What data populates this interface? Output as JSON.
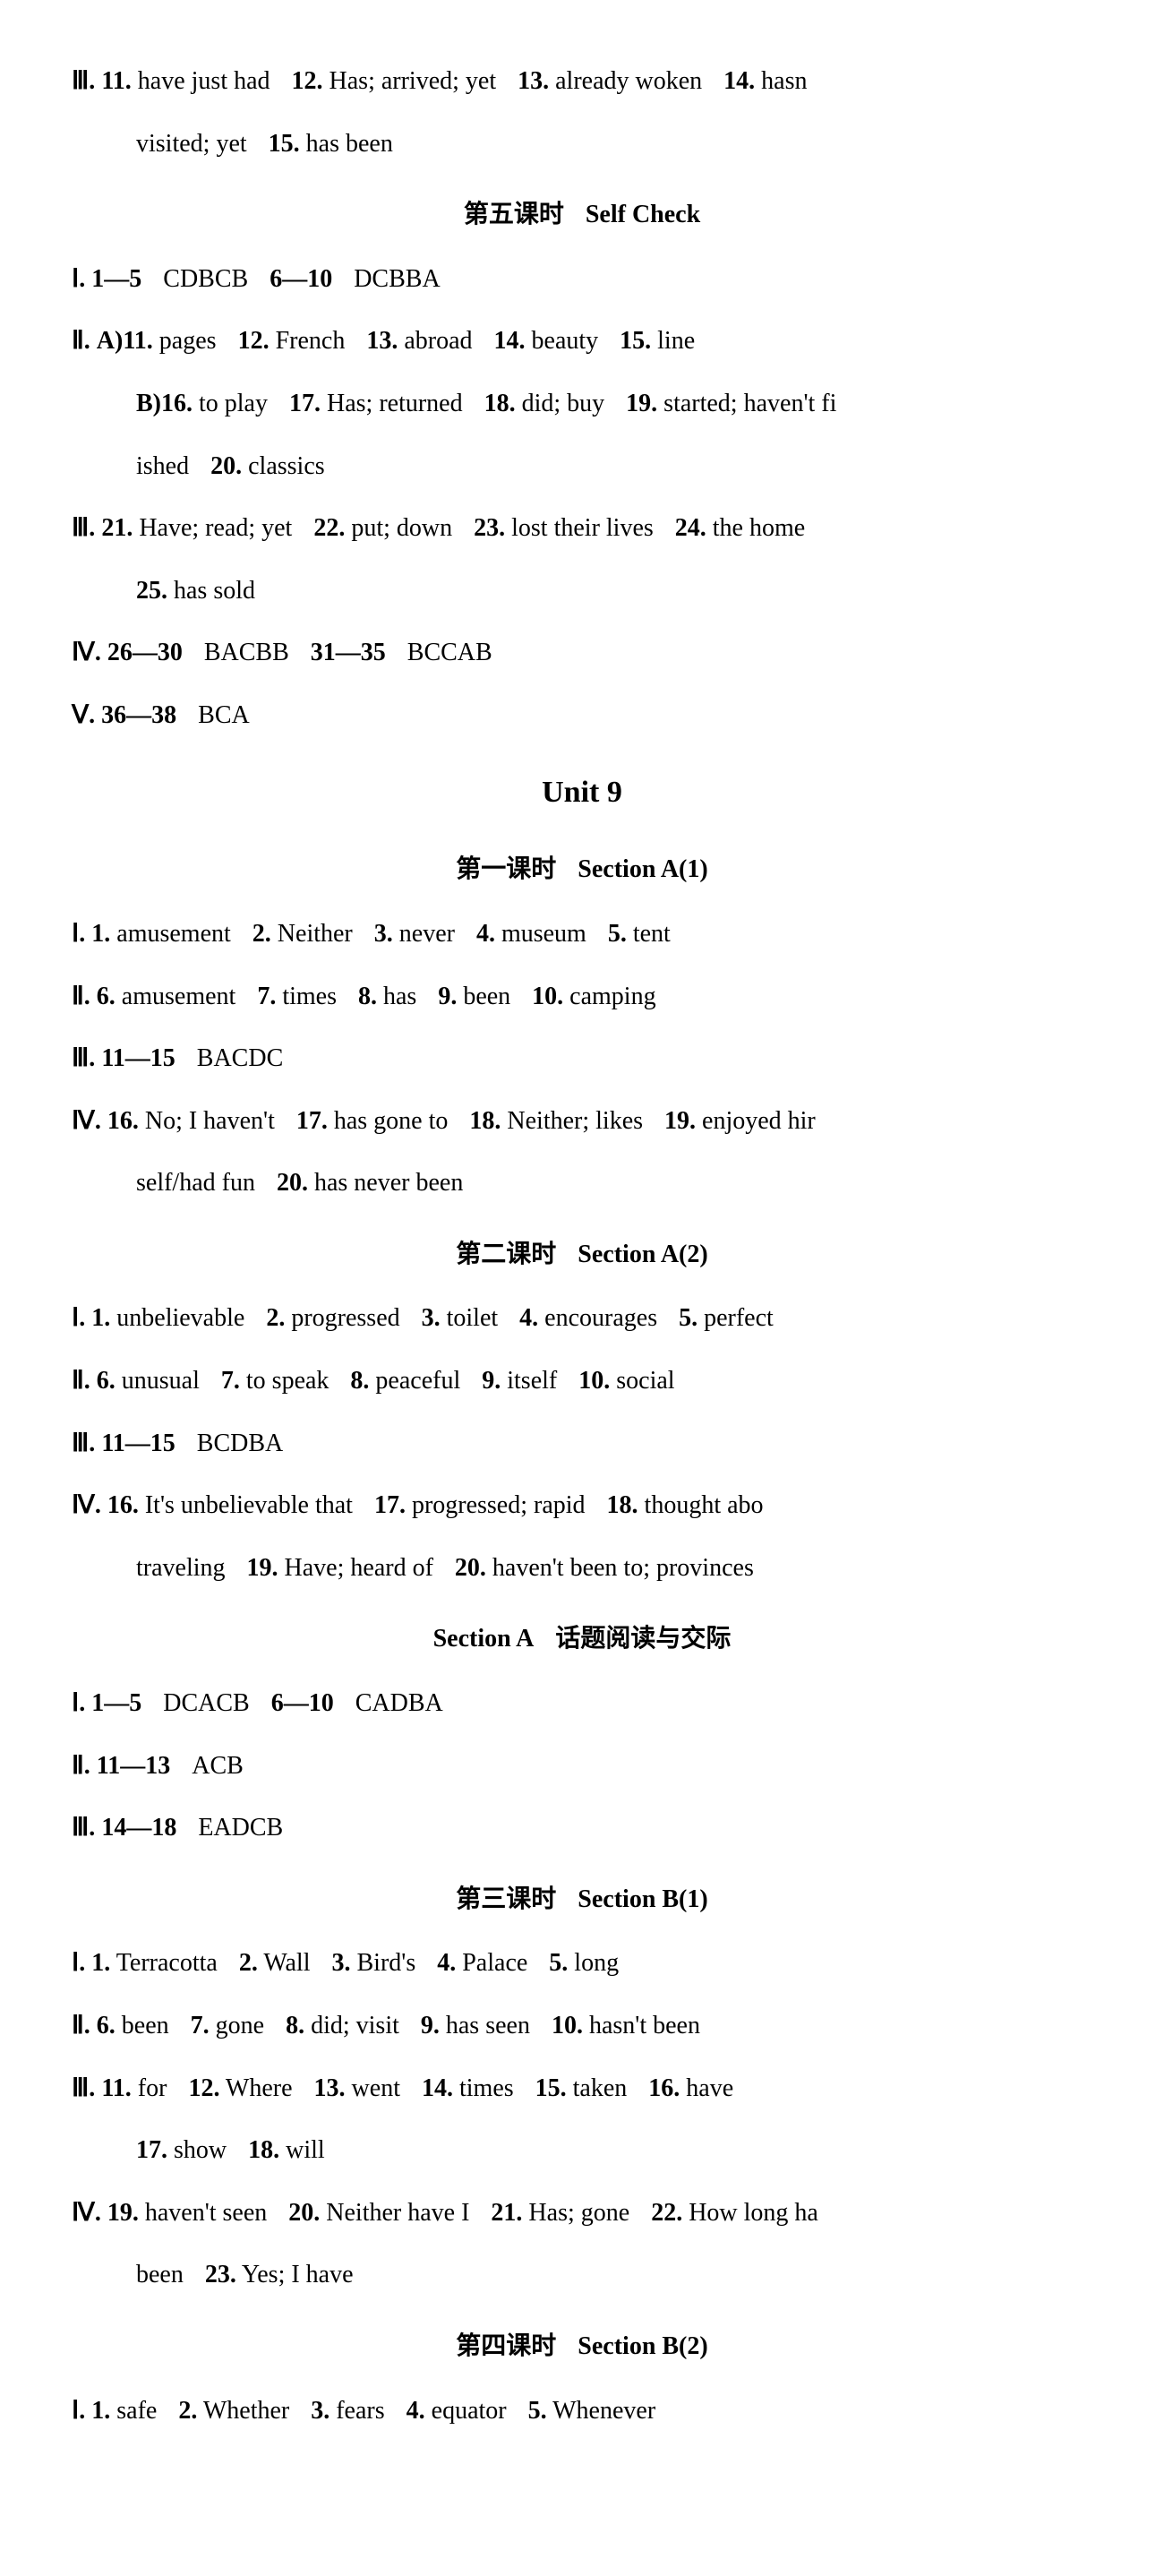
{
  "line1": "Ⅲ. 11. have just had   12. Has; arrived; yet   13. already woken   14. hasn",
  "line2": "visited; yet   15. has been",
  "heading_5": "第五课时   Self Check",
  "sc_1": "Ⅰ. 1—5   CDBCB   6—10   DCBBA",
  "sc_2a": "Ⅱ. A)11. pages   12. French   13. abroad   14. beauty   15. line",
  "sc_2b": "B)16. to play   17. Has; returned   18. did; buy   19. started; haven't fi",
  "sc_2c": "ished   20. classics",
  "sc_3a": "Ⅲ. 21. Have; read; yet   22. put; down   23. lost their lives   24. the home",
  "sc_3b": "25. has sold",
  "sc_4": "Ⅳ. 26—30   BACBB   31—35   BCCAB",
  "sc_5": "Ⅴ. 36—38   BCA",
  "unit9": "Unit 9",
  "h_a1": "第一课时   Section A(1)",
  "a1_1": "Ⅰ. 1. amusement   2. Neither   3. never   4. museum   5. tent",
  "a1_2": "Ⅱ. 6. amusement   7. times   8. has   9. been   10. camping",
  "a1_3": "Ⅲ. 11—15   BACDC",
  "a1_4a": "Ⅳ. 16. No; I haven't   17. has gone to   18. Neither; likes   19. enjoyed hir",
  "a1_4b": "self/had fun   20. has never been",
  "h_a2": "第二课时   Section A(2)",
  "a2_1": "Ⅰ. 1. unbelievable   2. progressed   3. toilet   4. encourages   5. perfect",
  "a2_2": "Ⅱ. 6. unusual   7. to speak   8. peaceful   9. itself   10. social",
  "a2_3": "Ⅲ. 11—15   BCDBA",
  "a2_4a": "Ⅳ. 16. It's unbelievable that    17. progressed; rapid    18. thought abo",
  "a2_4b": "traveling   19. Have; heard of   20. haven't been to; provinces",
  "h_topic": "Section A   话题阅读与交际",
  "tp_1": "Ⅰ. 1—5   DCACB   6—10   CADBA",
  "tp_2": "Ⅱ. 11—13   ACB",
  "tp_3": "Ⅲ. 14—18   EADCB",
  "h_b1": "第三课时   Section B(1)",
  "b1_1": "Ⅰ. 1. Terracotta   2. Wall   3. Bird's   4. Palace   5. long",
  "b1_2": "Ⅱ. 6. been   7. gone   8. did; visit   9. has seen   10. hasn't been",
  "b1_3a": "Ⅲ. 11. for   12. Where   13. went   14. times   15. taken   16. have",
  "b1_3b": "17. show   18. will",
  "b1_4a": "Ⅳ. 19. haven't seen   20. Neither have I   21. Has; gone   22. How long ha",
  "b1_4b": "been   23. Yes; I have",
  "h_b2": "第四课时   Section B(2)",
  "b2_1": "Ⅰ. 1. safe   2. Whether   3. fears   4. equator   5. Whenever"
}
